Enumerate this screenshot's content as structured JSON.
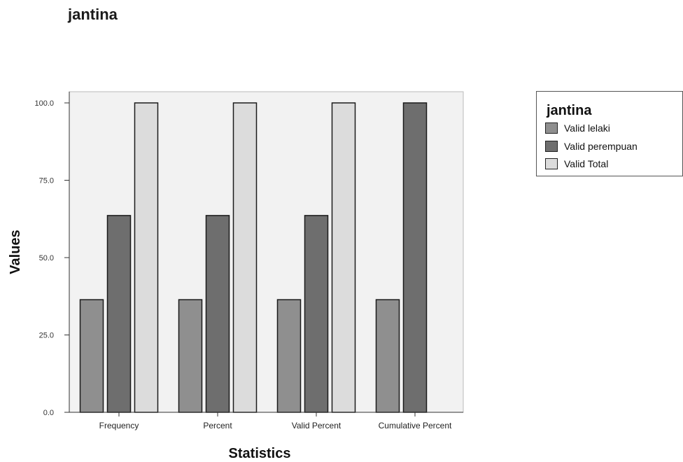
{
  "page": {
    "title": "jantina"
  },
  "chart_data": {
    "type": "bar",
    "categories": [
      "Frequency",
      "Percent",
      "Valid Percent",
      "Cumulative Percent"
    ],
    "series": [
      {
        "name": "Valid lelaki",
        "color": "#8f8f8f",
        "values": [
          36.4,
          36.4,
          36.4,
          36.4
        ]
      },
      {
        "name": "Valid perempuan",
        "color": "#6e6e6e",
        "values": [
          63.6,
          63.6,
          63.6,
          100.0
        ]
      },
      {
        "name": "Valid Total",
        "color": "#dcdcdc",
        "values": [
          100.0,
          100.0,
          100.0,
          null
        ]
      }
    ],
    "xlabel": "Statistics",
    "ylabel": "Values",
    "ylim": [
      0,
      100
    ],
    "yticks": [
      "0.0",
      "25.0",
      "50.0",
      "75.0",
      "100.0"
    ],
    "legend": {
      "title": "jantina",
      "position": "right"
    },
    "grid": false
  }
}
